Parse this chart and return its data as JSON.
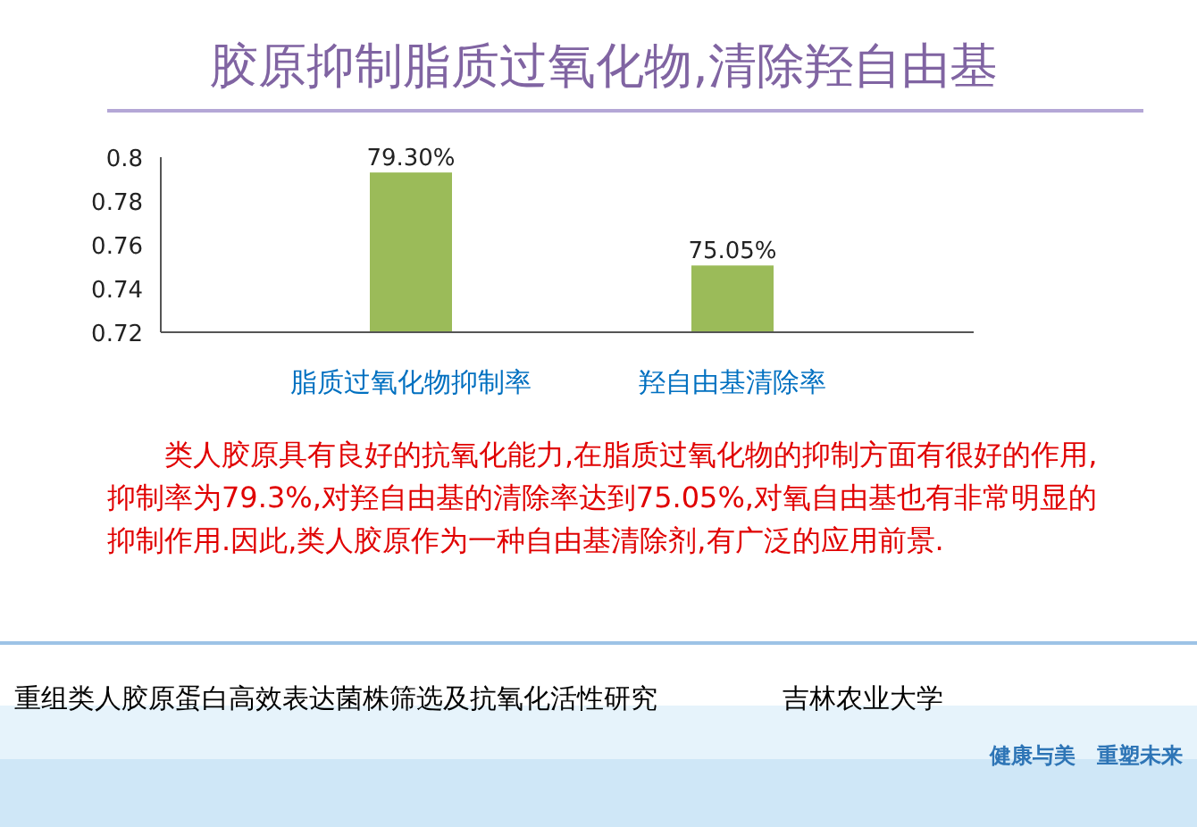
{
  "chart_data": {
    "type": "bar",
    "title": "胶原抑制脂质过氧化物,清除羟自由基",
    "categories": [
      "脂质过氧化物抑制率",
      "羟自由基清除率"
    ],
    "values": [
      0.793,
      0.7505
    ],
    "value_labels": [
      "79.30%",
      "75.05%"
    ],
    "color": "#9bbb59",
    "ylim": [
      0.72,
      0.8
    ],
    "yticks": [
      0.72,
      0.74,
      0.76,
      0.78,
      0.8
    ],
    "grid": false,
    "annotations": [
      "类人胶原具有良好的抗氧化能力,在脂质过氧化物的抑制方面有很好的作用,抑制率为79.3%,对羟自由基的清除率达到75.05%,对氧自由基也有非常明显的抑制作用.因此,类人胶原作为一种自由基清除剂,有广泛的应用前景.",
      "重组类人胶原蛋白高效表达菌株筛选及抗氧化活性研究",
      "吉林农业大学",
      "健康与美　重塑未来"
    ]
  }
}
